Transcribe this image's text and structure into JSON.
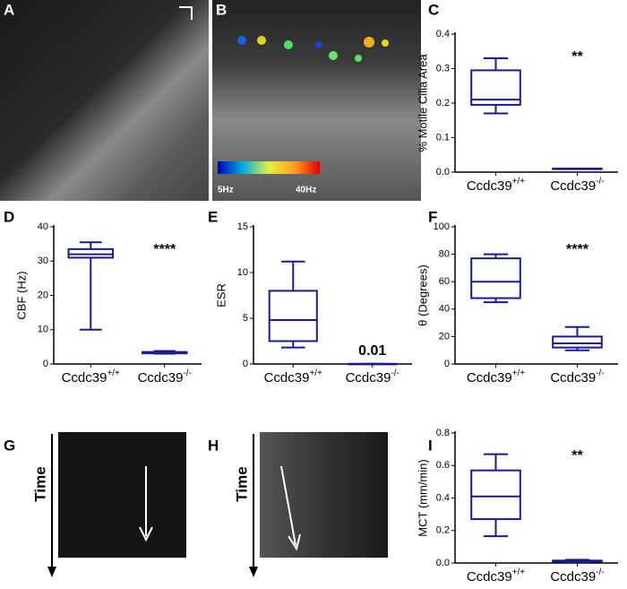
{
  "chart_data": [
    {
      "type": "box",
      "panel_label": "C",
      "y_label": "% Motile Cilia Area",
      "categories": [
        {
          "name": "Ccdc39",
          "superscript": "+/+"
        },
        {
          "name": "Ccdc39",
          "superscript": "-/-"
        }
      ],
      "boxes": [
        {
          "min": 0.17,
          "q1": 0.195,
          "median": 0.21,
          "q3": 0.295,
          "max": 0.33
        },
        {
          "min": 0.01,
          "q1": 0.01,
          "median": 0.01,
          "q3": 0.01,
          "max": 0.01
        }
      ],
      "color": "#1c1c8a",
      "ylim": [
        0,
        0.4
      ],
      "yticks": [
        {
          "value": 0,
          "label": "0.0"
        },
        0.1,
        0.2,
        0.3,
        0.4
      ],
      "annotation": "**"
    },
    {
      "type": "box",
      "panel_label": "D",
      "y_label": "CBF (Hz)",
      "categories": [
        {
          "name": "Ccdc39",
          "superscript": "+/+"
        },
        {
          "name": "Ccdc39",
          "superscript": "-/-"
        }
      ],
      "boxes": [
        {
          "min": 10,
          "q1": 31,
          "median": 32,
          "q3": 33.5,
          "max": 35.5
        },
        {
          "min": 3,
          "q1": 3.1,
          "median": 3.3,
          "q3": 3.5,
          "max": 3.8
        }
      ],
      "color": "#1c1c8a",
      "ylim": [
        0,
        40
      ],
      "yticks": [
        0,
        10,
        20,
        30,
        40
      ],
      "annotation": "****"
    },
    {
      "type": "box",
      "panel_label": "E",
      "y_label": "ESR",
      "categories": [
        {
          "name": "Ccdc39",
          "superscript": "+/+"
        },
        {
          "name": "Ccdc39",
          "superscript": "-/-"
        }
      ],
      "boxes": [
        {
          "min": 1.8,
          "q1": 2.5,
          "median": 4.8,
          "q3": 8,
          "max": 11.2
        },
        {
          "min": 0.01,
          "q1": 0.01,
          "median": 0.01,
          "q3": 0.01,
          "max": 0.01
        }
      ],
      "color": "#1c1c8a",
      "ylim": [
        0,
        15
      ],
      "yticks": [
        0,
        5,
        10,
        15
      ],
      "annotation": "0.01"
    },
    {
      "type": "box",
      "panel_label": "F",
      "y_label": "θ (Degrees)",
      "categories": [
        {
          "name": "Ccdc39",
          "superscript": "+/+"
        },
        {
          "name": "Ccdc39",
          "superscript": "-/-"
        }
      ],
      "boxes": [
        {
          "min": 45,
          "q1": 48,
          "median": 60,
          "q3": 77,
          "max": 80
        },
        {
          "min": 10,
          "q1": 12,
          "median": 15,
          "q3": 20,
          "max": 27
        }
      ],
      "color": "#1c1c8a",
      "ylim": [
        0,
        100
      ],
      "yticks": [
        0,
        20,
        40,
        60,
        80,
        100
      ],
      "annotation": "****"
    },
    {
      "type": "box",
      "panel_label": "I",
      "y_label": "MCT (mm/min)",
      "categories": [
        {
          "name": "Ccdc39",
          "superscript": "+/+"
        },
        {
          "name": "Ccdc39",
          "superscript": "-/-"
        }
      ],
      "boxes": [
        {
          "min": 0.165,
          "q1": 0.27,
          "median": 0.41,
          "q3": 0.57,
          "max": 0.67
        },
        {
          "min": 0.005,
          "q1": 0.008,
          "median": 0.01,
          "q3": 0.015,
          "max": 0.02
        }
      ],
      "color": "#1c1c8a",
      "ylim": [
        0,
        0.8
      ],
      "yticks": [
        {
          "value": 0,
          "label": "0.0"
        },
        0.2,
        0.4,
        0.6,
        0.8
      ],
      "annotation": "**"
    }
  ],
  "images": [
    {
      "panel_label": "A"
    },
    {
      "panel_label": "B",
      "colorbar": {
        "low_label": "5Hz",
        "high_label": "40Hz"
      }
    },
    {
      "panel_label": "G",
      "axis_label": "Time"
    },
    {
      "panel_label": "H",
      "axis_label": "Time"
    }
  ]
}
